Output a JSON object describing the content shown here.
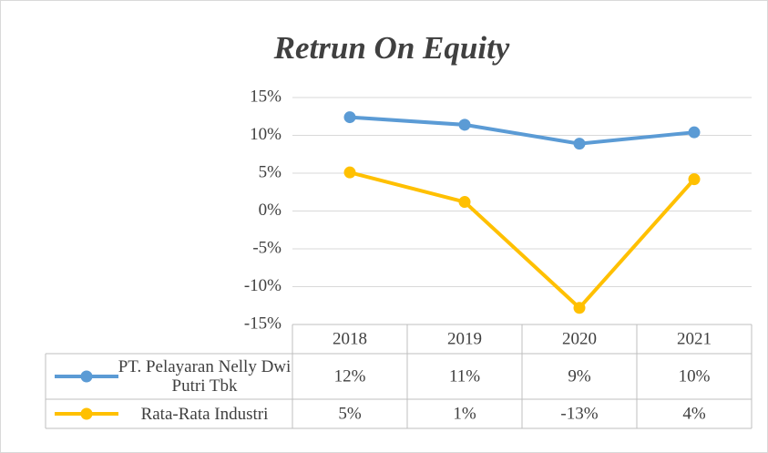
{
  "chart_data": {
    "type": "line",
    "title": "Retrun On Equity",
    "categories": [
      "2018",
      "2019",
      "2020",
      "2021"
    ],
    "series": [
      {
        "name": "PT. Pelayaran Nelly Dwi Putri Tbk",
        "color": "#5b9bd5",
        "values": [
          12.4,
          11.4,
          8.9,
          10.4
        ],
        "value_labels": [
          "12%",
          "11%",
          "9%",
          "10%"
        ]
      },
      {
        "name": "Rata-Rata Industri",
        "color": "#ffc000",
        "values": [
          5.1,
          1.2,
          -12.8,
          4.2
        ],
        "value_labels": [
          "5%",
          "1%",
          "-13%",
          "4%"
        ]
      }
    ],
    "ylim": [
      -15,
      15
    ],
    "yticks": [
      {
        "value": -15,
        "label": "-15%"
      },
      {
        "value": -10,
        "label": "-10%"
      },
      {
        "value": -5,
        "label": "-5%"
      },
      {
        "value": 0,
        "label": "0%"
      },
      {
        "value": 5,
        "label": "5%"
      },
      {
        "value": 10,
        "label": "10%"
      },
      {
        "value": 15,
        "label": "15%"
      }
    ],
    "grid": true
  }
}
